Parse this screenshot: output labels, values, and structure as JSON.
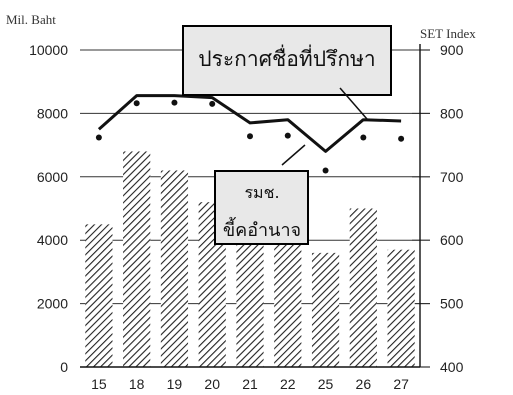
{
  "chart_data": {
    "type": "bar",
    "title": "",
    "xlabel": "",
    "ylabel_left": "Mil. Baht",
    "ylabel_right": "SET Index",
    "categories": [
      "15",
      "18",
      "19",
      "20",
      "21",
      "22",
      "25",
      "26",
      "27"
    ],
    "ylim_left": [
      0,
      10000
    ],
    "ylim_right": [
      400,
      900
    ],
    "left_ticks": [
      "0",
      "2000",
      "4000",
      "6000",
      "8000",
      "10000"
    ],
    "right_ticks": [
      "400",
      "500",
      "600",
      "700",
      "800",
      "900"
    ],
    "grid": true,
    "bar_fill": "hatched",
    "series": [
      {
        "axis": "left",
        "type": "bar",
        "values": [
          4500,
          6800,
          6200,
          5200,
          3900,
          3900,
          3600,
          5000,
          3700
        ]
      },
      {
        "axis": "right",
        "type": "line",
        "values": [
          775,
          828,
          828,
          825,
          785,
          790,
          740,
          790,
          788
        ]
      },
      {
        "axis": "right",
        "type": "scatter",
        "values": [
          762,
          816,
          817,
          815,
          764,
          765,
          710,
          762,
          760
        ]
      }
    ],
    "annotations": [
      {
        "text": "ประกาศชื่อที่ปรึกษา"
      },
      {
        "text": "รมช."
      },
      {
        "text": "ขี้คอำนาจ"
      }
    ],
    "colors": {
      "line": "#111111",
      "bar_hatch": "#222222",
      "grid": "#333333",
      "annotation_box": "#e8e8e8"
    }
  }
}
